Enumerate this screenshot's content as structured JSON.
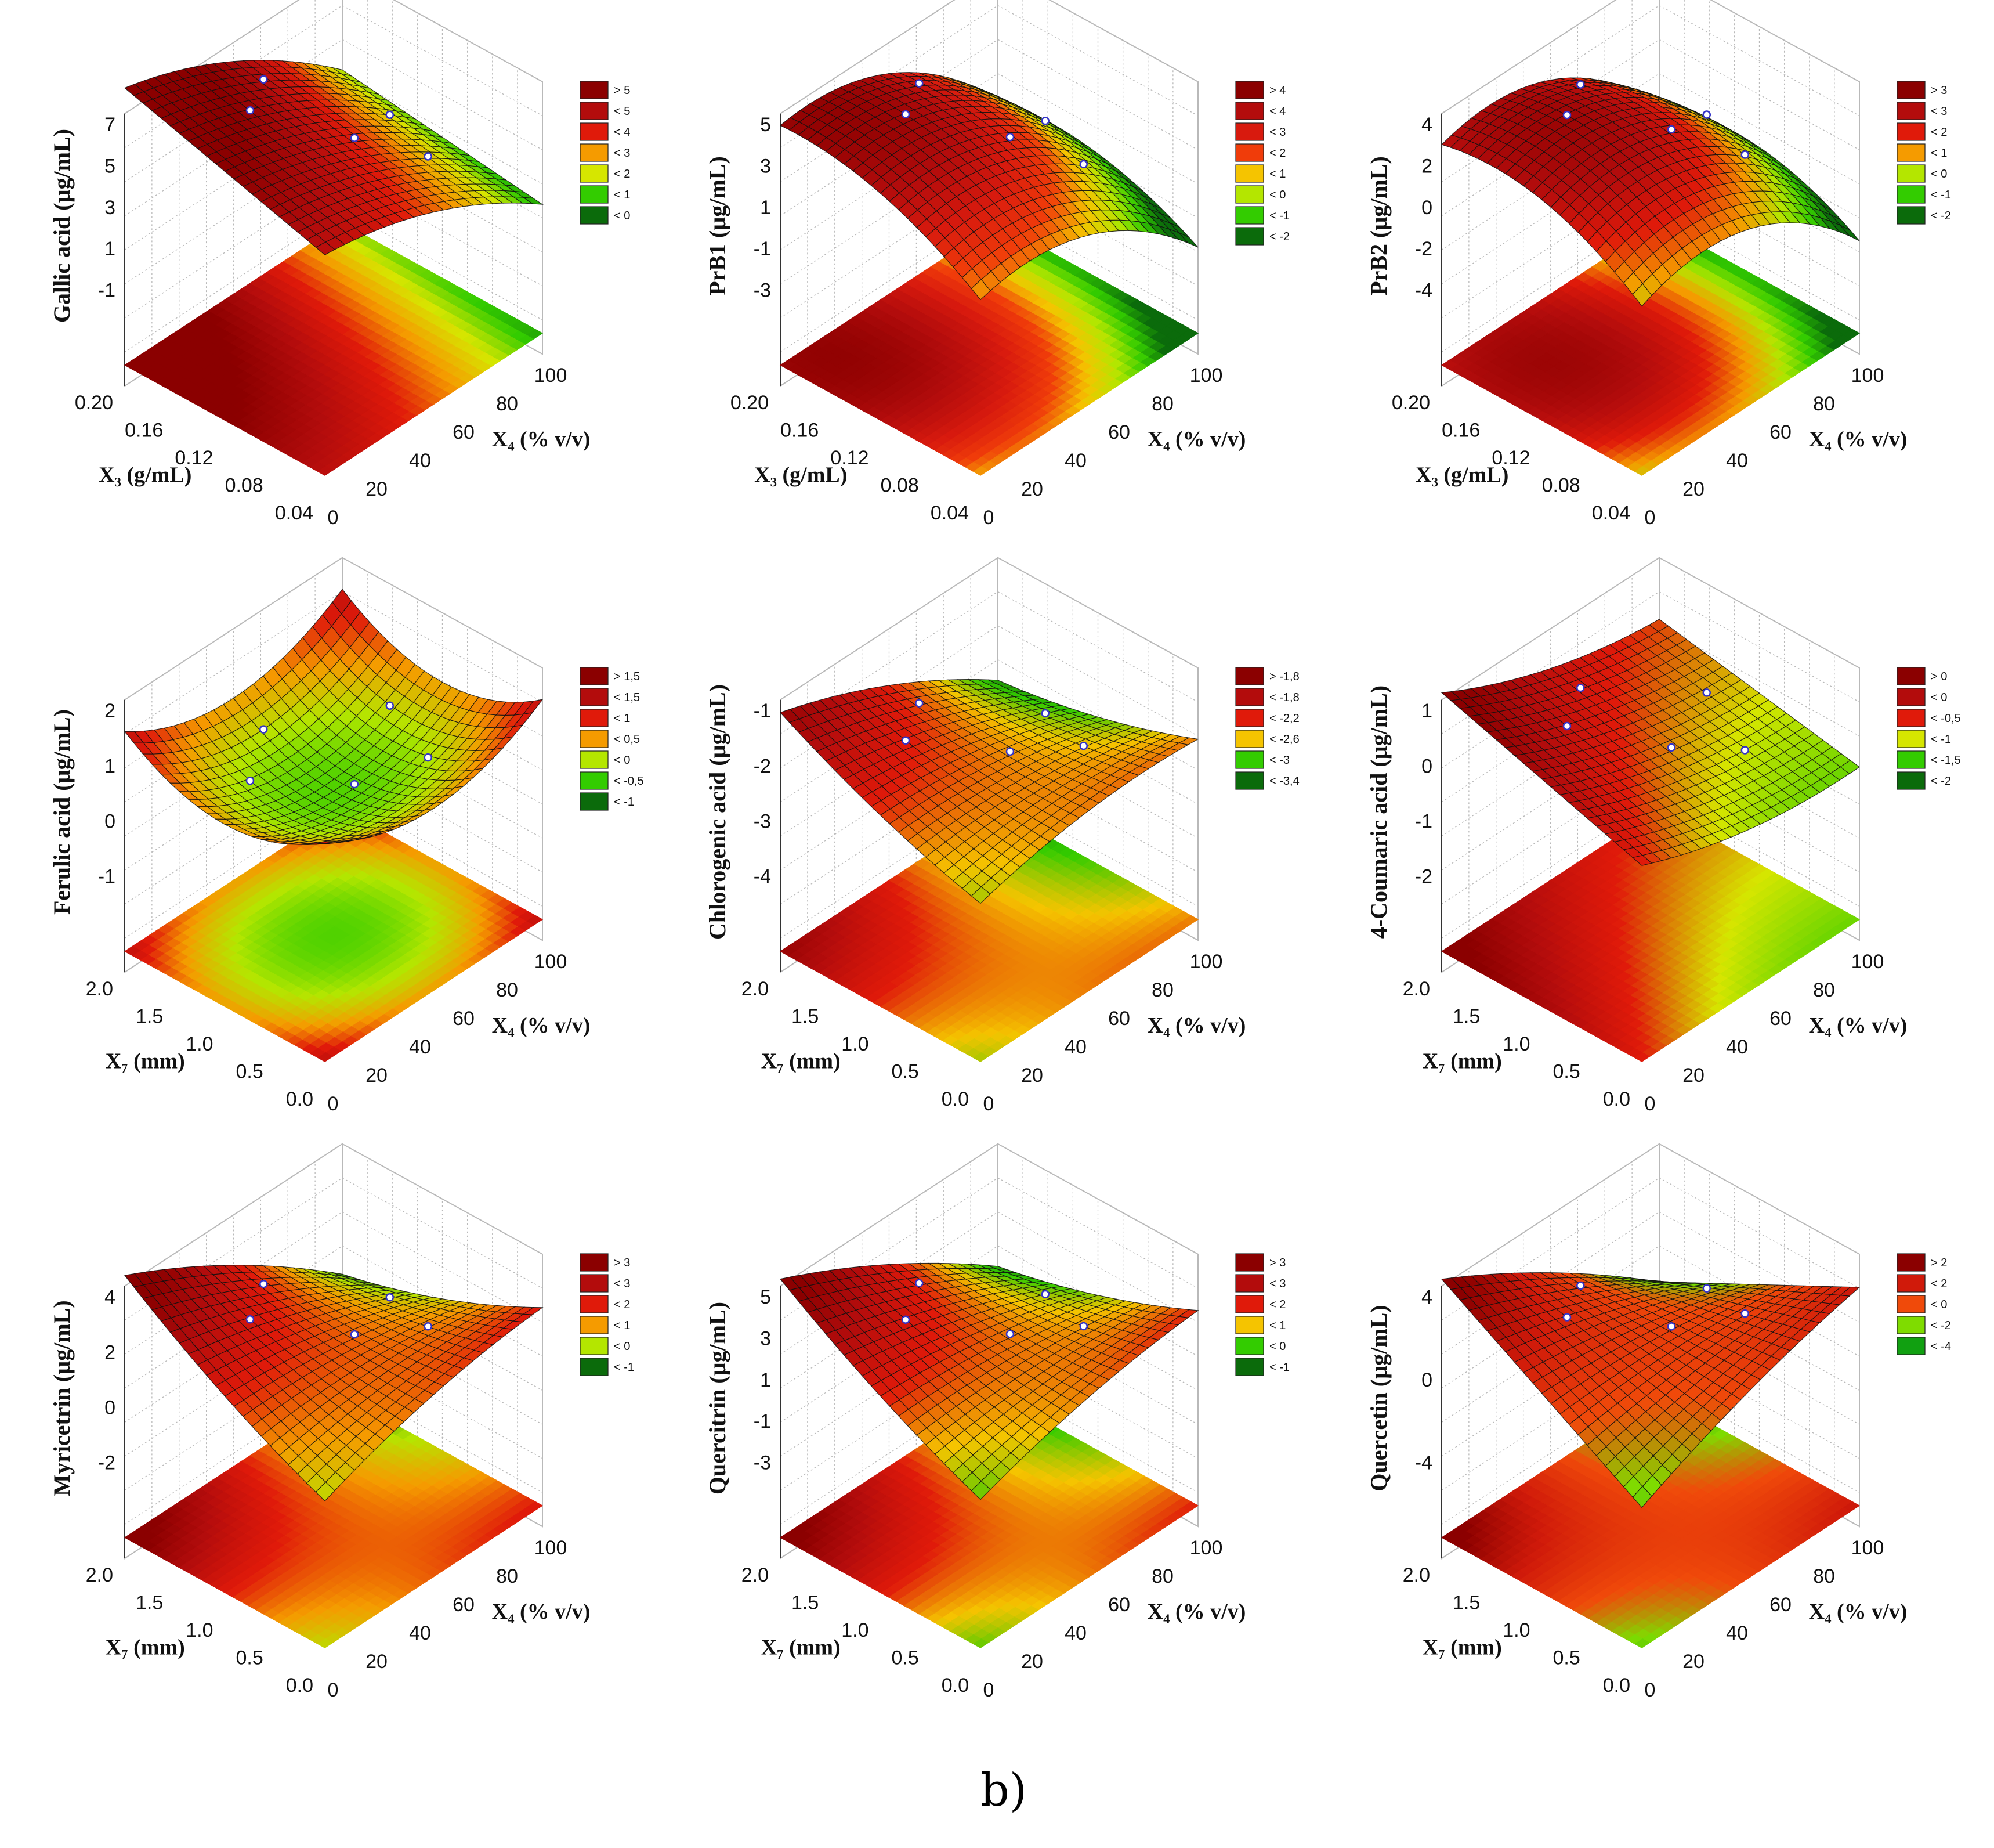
{
  "figure_label": "b)",
  "colors": {
    "grid": "#b9b9b9",
    "wire": "#111111",
    "neutral_surface": "#9a9a9a",
    "point": "#3434c8"
  },
  "chart_data": [
    {
      "type": "surface3d",
      "id": "gallic",
      "zlabel": "Gallic acid (µg/mL)",
      "zticks": [
        "7",
        "5",
        "3",
        "1",
        "-1"
      ],
      "zrange": [
        -2,
        7.5
      ],
      "y_axis": {
        "label": "X₃ (g/mL)",
        "ticks": [
          "0.20",
          "0.16",
          "0.12",
          "0.08",
          "0.04"
        ]
      },
      "x_axis": {
        "label": "X₄ (% v/v)",
        "ticks": [
          "0",
          "20",
          "40",
          "60",
          "80",
          "100"
        ]
      },
      "surface": {
        "c": 5,
        "x": -4,
        "y": 1.5,
        "xx": -1.3,
        "yy": 0,
        "xy": -0.6
      },
      "legend": [
        {
          "label": "> 5",
          "color": "#8b0000"
        },
        {
          "label": "< 5",
          "color": "#b30c0c"
        },
        {
          "label": "< 4",
          "color": "#e01a0a"
        },
        {
          "label": "< 3",
          "color": "#f59b00"
        },
        {
          "label": "< 2",
          "color": "#d6e600"
        },
        {
          "label": "< 1",
          "color": "#33cc00"
        },
        {
          "label": "< 0",
          "color": "#0b6b0b"
        }
      ]
    },
    {
      "type": "surface3d",
      "id": "prb1",
      "zlabel": "PrB1 (µg/mL)",
      "zticks": [
        "5",
        "3",
        "1",
        "-1",
        "-3"
      ],
      "zrange": [
        -4,
        6
      ],
      "y_axis": {
        "label": "X₃ (g/mL)",
        "ticks": [
          "0.20",
          "0.16",
          "0.12",
          "0.08",
          "0.04"
        ]
      },
      "x_axis": {
        "label": "X₄ (% v/v)",
        "ticks": [
          "0",
          "20",
          "40",
          "60",
          "80",
          "100"
        ]
      },
      "surface": {
        "c": 3.5,
        "x": -4,
        "y": 2,
        "xx": -3,
        "yy": -1.5,
        "xy": -0.5
      },
      "legend": [
        {
          "label": "> 4",
          "color": "#8b0000"
        },
        {
          "label": "< 4",
          "color": "#b30c0c"
        },
        {
          "label": "< 3",
          "color": "#d81a0e"
        },
        {
          "label": "< 2",
          "color": "#f03c0a"
        },
        {
          "label": "< 1",
          "color": "#f5c400"
        },
        {
          "label": "< 0",
          "color": "#b4e600"
        },
        {
          "label": "< -1",
          "color": "#33cc00"
        },
        {
          "label": "< -2",
          "color": "#0b6b0b"
        }
      ]
    },
    {
      "type": "surface3d",
      "id": "prb2",
      "zlabel": "PrB2 (µg/mL)",
      "zticks": [
        "4",
        "2",
        "0",
        "-2",
        "-4"
      ],
      "zrange": [
        -5,
        5
      ],
      "y_axis": {
        "label": "X₃ (g/mL)",
        "ticks": [
          "0.20",
          "0.16",
          "0.12",
          "0.08",
          "0.04"
        ]
      },
      "x_axis": {
        "label": "X₄ (% v/v)",
        "ticks": [
          "0",
          "20",
          "40",
          "60",
          "80",
          "100"
        ]
      },
      "surface": {
        "c": 3,
        "x": -3.5,
        "y": 1.5,
        "xx": -3.5,
        "yy": -2,
        "xy": -0.5
      },
      "legend": [
        {
          "label": "> 3",
          "color": "#8b0000"
        },
        {
          "label": "< 3",
          "color": "#b30c0c"
        },
        {
          "label": "< 2",
          "color": "#e01a0a"
        },
        {
          "label": "< 1",
          "color": "#f59b00"
        },
        {
          "label": "< 0",
          "color": "#b4e600"
        },
        {
          "label": "< -1",
          "color": "#33cc00"
        },
        {
          "label": "< -2",
          "color": "#0b6b0b"
        }
      ]
    },
    {
      "type": "surface3d",
      "id": "ferulic",
      "zlabel": "Ferulic acid (µg/mL)",
      "zticks": [
        "2",
        "1",
        "0",
        "-1"
      ],
      "zrange": [
        -2,
        2.4
      ],
      "y_axis": {
        "label": "X₇ (mm)",
        "ticks": [
          "2.0",
          "1.5",
          "1.0",
          "0.5",
          "0.0"
        ]
      },
      "x_axis": {
        "label": "X₄ (% v/v)",
        "ticks": [
          "0",
          "20",
          "40",
          "60",
          "80",
          "100"
        ]
      },
      "surface": {
        "c": -1.1,
        "x": 0,
        "y": 0,
        "xx": 1.3,
        "yy": 1.3,
        "xy": 0
      },
      "legend": [
        {
          "label": "> 1,5",
          "color": "#8b0000"
        },
        {
          "label": "< 1,5",
          "color": "#b30c0c"
        },
        {
          "label": "< 1",
          "color": "#e01a0a"
        },
        {
          "label": "< 0,5",
          "color": "#f59b00"
        },
        {
          "label": "< 0",
          "color": "#b4e600"
        },
        {
          "label": "< -0,5",
          "color": "#33cc00"
        },
        {
          "label": "< -1",
          "color": "#0b6b0b"
        }
      ]
    },
    {
      "type": "surface3d",
      "id": "chlorogenic",
      "zlabel": "Chlorogenic acid (µg/mL)",
      "zticks": [
        "-1",
        "-2",
        "-3",
        "-4"
      ],
      "zrange": [
        -4.3,
        -0.8
      ],
      "y_axis": {
        "label": "X₇ (mm)",
        "ticks": [
          "2.0",
          "1.5",
          "1.0",
          "0.5",
          "0.0"
        ]
      },
      "x_axis": {
        "label": "X₄ (% v/v)",
        "ticks": [
          "0",
          "20",
          "40",
          "60",
          "80",
          "100"
        ]
      },
      "surface": {
        "c": -2.6,
        "x": -0.6,
        "y": 0.2,
        "xx": -0.3,
        "yy": 0.2,
        "xy": -0.9
      },
      "legend": [
        {
          "label": "> -1,8",
          "color": "#8b0000"
        },
        {
          "label": "< -1,8",
          "color": "#b30c0c"
        },
        {
          "label": "< -2,2",
          "color": "#e01a0a"
        },
        {
          "label": "< -2,6",
          "color": "#f5c400"
        },
        {
          "label": "< -3",
          "color": "#33cc00"
        },
        {
          "label": "< -3,4",
          "color": "#0b6b0b"
        }
      ]
    },
    {
      "type": "surface3d",
      "id": "coumaric",
      "zlabel": "4-Coumaric acid (µg/mL)",
      "zticks": [
        "1",
        "0",
        "-1",
        "-2"
      ],
      "zrange": [
        -2.8,
        1.3
      ],
      "y_axis": {
        "label": "X₇ (mm)",
        "ticks": [
          "2.0",
          "1.5",
          "1.0",
          "0.5",
          "0.0"
        ]
      },
      "x_axis": {
        "label": "X₄ (% v/v)",
        "ticks": [
          "0",
          "20",
          "40",
          "60",
          "80",
          "100"
        ]
      },
      "surface": {
        "c": -0.6,
        "x": -0.9,
        "y": 0.8,
        "xx": 0.4,
        "yy": 0,
        "xy": -0.2
      },
      "legend": [
        {
          "label": "> 0",
          "color": "#8b0000"
        },
        {
          "label": "< 0",
          "color": "#b30c0c"
        },
        {
          "label": "< -0,5",
          "color": "#e01a0a"
        },
        {
          "label": "< -1",
          "color": "#d6e600"
        },
        {
          "label": "< -1,5",
          "color": "#33cc00"
        },
        {
          "label": "< -2",
          "color": "#0b6b0b"
        }
      ]
    },
    {
      "type": "surface3d",
      "id": "myricetrin",
      "zlabel": "Myricetrin (µg/mL)",
      "zticks": [
        "4",
        "2",
        "0",
        "-2"
      ],
      "zrange": [
        -3.5,
        4.5
      ],
      "y_axis": {
        "label": "X₇ (mm)",
        "ticks": [
          "2.0",
          "1.5",
          "1.0",
          "0.5",
          "0.0"
        ]
      },
      "x_axis": {
        "label": "X₄ (% v/v)",
        "ticks": [
          "0",
          "20",
          "40",
          "60",
          "80",
          "100"
        ]
      },
      "surface": {
        "c": 0.6,
        "x": -1.4,
        "y": 0.6,
        "xx": -0.6,
        "yy": 0.5,
        "xy": -3
      },
      "legend": [
        {
          "label": "> 3",
          "color": "#8b0000"
        },
        {
          "label": "< 3",
          "color": "#b30c0c"
        },
        {
          "label": "< 2",
          "color": "#e01a0a"
        },
        {
          "label": "< 1",
          "color": "#f59b00"
        },
        {
          "label": "< 0",
          "color": "#b4e600"
        },
        {
          "label": "< -1",
          "color": "#0b6b0b"
        }
      ]
    },
    {
      "type": "surface3d",
      "id": "quercitrin",
      "zlabel": "Quercitrin (µg/mL)",
      "zticks": [
        "5",
        "3",
        "1",
        "-1",
        "-3"
      ],
      "zrange": [
        -3.8,
        5.5
      ],
      "y_axis": {
        "label": "X₇ (mm)",
        "ticks": [
          "2.0",
          "1.5",
          "1.0",
          "0.5",
          "0.0"
        ]
      },
      "x_axis": {
        "label": "X₄ (% v/v)",
        "ticks": [
          "0",
          "20",
          "40",
          "60",
          "80",
          "100"
        ]
      },
      "surface": {
        "c": 1,
        "x": -1.5,
        "y": 0.8,
        "xx": -0.6,
        "yy": 0.5,
        "xy": -3.2
      },
      "legend": [
        {
          "label": "> 3",
          "color": "#8b0000"
        },
        {
          "label": "< 3",
          "color": "#b30c0c"
        },
        {
          "label": "< 2",
          "color": "#e01a0a"
        },
        {
          "label": "< 1",
          "color": "#f5c400"
        },
        {
          "label": "< 0",
          "color": "#33cc00"
        },
        {
          "label": "< -1",
          "color": "#0b6b0b"
        }
      ]
    },
    {
      "type": "surface3d",
      "id": "quercetin",
      "zlabel": "Quercetin (µg/mL)",
      "zticks": [
        "4",
        "0",
        "-4"
      ],
      "zrange": [
        -6,
        5.5
      ],
      "y_axis": {
        "label": "X₇ (mm)",
        "ticks": [
          "2.0",
          "1.5",
          "1.0",
          "0.5",
          "0.0"
        ]
      },
      "x_axis": {
        "label": "X₄ (% v/v)",
        "ticks": [
          "0",
          "20",
          "40",
          "60",
          "80",
          "100"
        ]
      },
      "surface": {
        "c": 0.5,
        "x": -1.5,
        "y": 0.3,
        "xx": -0.7,
        "yy": 0,
        "xy": -5
      },
      "legend": [
        {
          "label": "> 2",
          "color": "#8b0000"
        },
        {
          "label": "< 2",
          "color": "#d01a0a"
        },
        {
          "label": "< 0",
          "color": "#f04a0a"
        },
        {
          "label": "< -2",
          "color": "#7fdc00"
        },
        {
          "label": "< -4",
          "color": "#11a011"
        }
      ]
    }
  ]
}
